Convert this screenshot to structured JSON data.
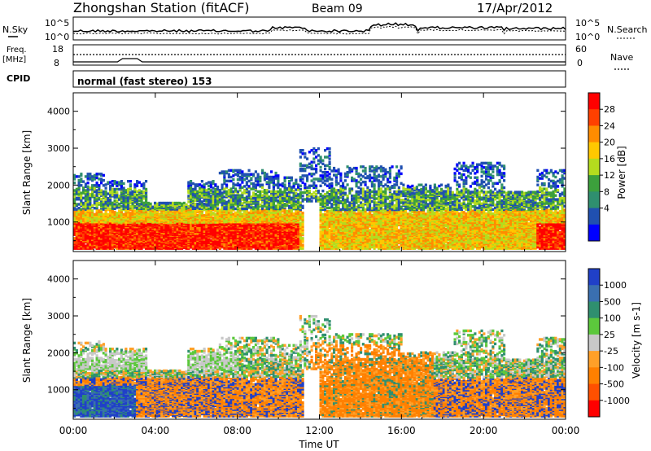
{
  "header": {
    "title": "Zhongshan Station (fitACF)",
    "beam": "Beam 09",
    "date": "17/Apr/2012",
    "mode": "normal (fast stereo) 153"
  },
  "side_labels": {
    "nsky": "N.Sky",
    "freq": "Freq.",
    "freq_unit": "[MHz]",
    "cpid": "CPID",
    "nsearch": "N.Search",
    "nave": "Nave"
  },
  "top_axes": {
    "noise_ticks_left": [
      "10^5",
      "10^0"
    ],
    "noise_ticks_right": [
      "10^5",
      "10^0"
    ],
    "freq_ticks_left": [
      "18",
      "8"
    ],
    "nave_ticks_right": [
      "60",
      "0"
    ]
  },
  "chart_data": [
    {
      "type": "heatmap",
      "panel": "power",
      "ylabel": "Slant Range [km]",
      "ylim": [
        200,
        4500
      ],
      "yticks": [
        "1000",
        "2000",
        "3000",
        "4000"
      ],
      "colorbar": {
        "label": "Power [dB]",
        "ticks": [
          "28",
          "24",
          "20",
          "16",
          "12",
          "8",
          "4"
        ],
        "colors": [
          "#ff0000",
          "#ff4000",
          "#ff8c00",
          "#ffc800",
          "#b4dc1e",
          "#3ca03c",
          "#2f8f6f",
          "#2050b0",
          "#0000ff"
        ]
      }
    },
    {
      "type": "heatmap",
      "panel": "velocity",
      "ylabel": "Slant Range [km]",
      "ylim": [
        200,
        4500
      ],
      "yticks": [
        "1000",
        "2000",
        "3000",
        "4000"
      ],
      "xlabel": "Time UT",
      "xticks": [
        "00:00",
        "04:00",
        "08:00",
        "12:00",
        "16:00",
        "20:00",
        "00:00"
      ],
      "colorbar": {
        "label": "Velocity [m s-1]",
        "ticks": [
          "1000",
          "500",
          "100",
          "25",
          "-25",
          "-100",
          "-500",
          "-1000"
        ],
        "colors": [
          "#2040c8",
          "#3a6fb0",
          "#2f8f6f",
          "#5cc83c",
          "#c8c8c8",
          "#ffa028",
          "#ff8000",
          "#ff5000",
          "#ff0000"
        ]
      }
    }
  ]
}
